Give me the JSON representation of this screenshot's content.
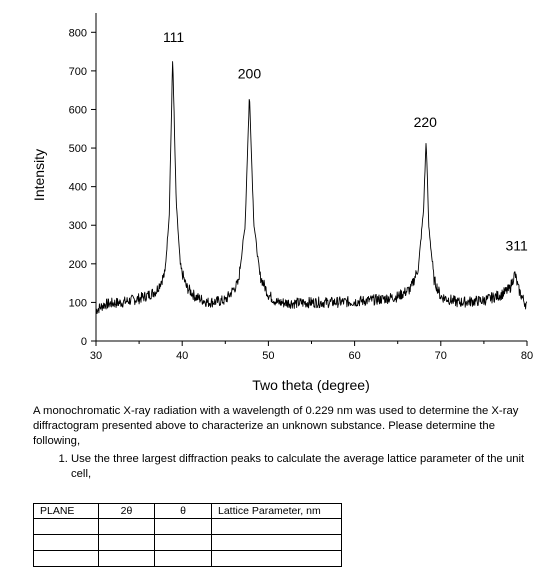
{
  "chart_data": {
    "type": "line",
    "title": "",
    "xlabel": "Two theta (degree)",
    "ylabel": "Intensity",
    "xlim": [
      30,
      80
    ],
    "ylim": [
      0,
      850
    ],
    "x_ticks": [
      30,
      40,
      50,
      60,
      70,
      80
    ],
    "y_ticks": [
      0,
      100,
      200,
      300,
      400,
      500,
      600,
      700,
      800
    ],
    "baseline": 100,
    "series": [
      {
        "values": [
          [
            30,
            80
          ],
          [
            31,
            95
          ],
          [
            32,
            98
          ],
          [
            33,
            100
          ],
          [
            34,
            105
          ],
          [
            35,
            110
          ],
          [
            36,
            118
          ],
          [
            37,
            130
          ],
          [
            38,
            175
          ],
          [
            38.5,
            330
          ],
          [
            38.9,
            735
          ],
          [
            39.3,
            360
          ],
          [
            39.8,
            190
          ],
          [
            40.5,
            140
          ],
          [
            41.5,
            115
          ],
          [
            43,
            100
          ],
          [
            45,
            105
          ],
          [
            46.5,
            150
          ],
          [
            47.3,
            300
          ],
          [
            47.8,
            640
          ],
          [
            48.3,
            310
          ],
          [
            49,
            170
          ],
          [
            50,
            120
          ],
          [
            51,
            100
          ],
          [
            53,
            98
          ],
          [
            55,
            100
          ],
          [
            57,
            100
          ],
          [
            60,
            102
          ],
          [
            63,
            108
          ],
          [
            65,
            115
          ],
          [
            66.5,
            135
          ],
          [
            67.4,
            190
          ],
          [
            68,
            340
          ],
          [
            68.3,
            525
          ],
          [
            68.6,
            300
          ],
          [
            69.2,
            160
          ],
          [
            70,
            115
          ],
          [
            72,
            100
          ],
          [
            75,
            105
          ],
          [
            77,
            120
          ],
          [
            78,
            135
          ],
          [
            78.6,
            175
          ],
          [
            79,
            135
          ],
          [
            79.5,
            110
          ],
          [
            80,
            90
          ]
        ]
      }
    ],
    "peak_labels": [
      {
        "text": "111",
        "x": 39,
        "y": 775
      },
      {
        "text": "200",
        "x": 47.8,
        "y": 680
      },
      {
        "text": "220",
        "x": 68.2,
        "y": 555
      },
      {
        "text": "311",
        "x": 78.8,
        "y": 235
      }
    ]
  },
  "question": {
    "intro": "A monochromatic X-ray radiation with a wavelength of 0.229 nm was used to determine the X-ray diffractogram presented above to characterize an unknown substance. Please determine the following,",
    "items": [
      "Use the three largest diffraction peaks to calculate the average lattice parameter of the unit cell,"
    ]
  },
  "table": {
    "headers": [
      "PLANE",
      "2θ",
      "θ",
      "Lattice Parameter, nm"
    ],
    "empty_rows": 3
  }
}
